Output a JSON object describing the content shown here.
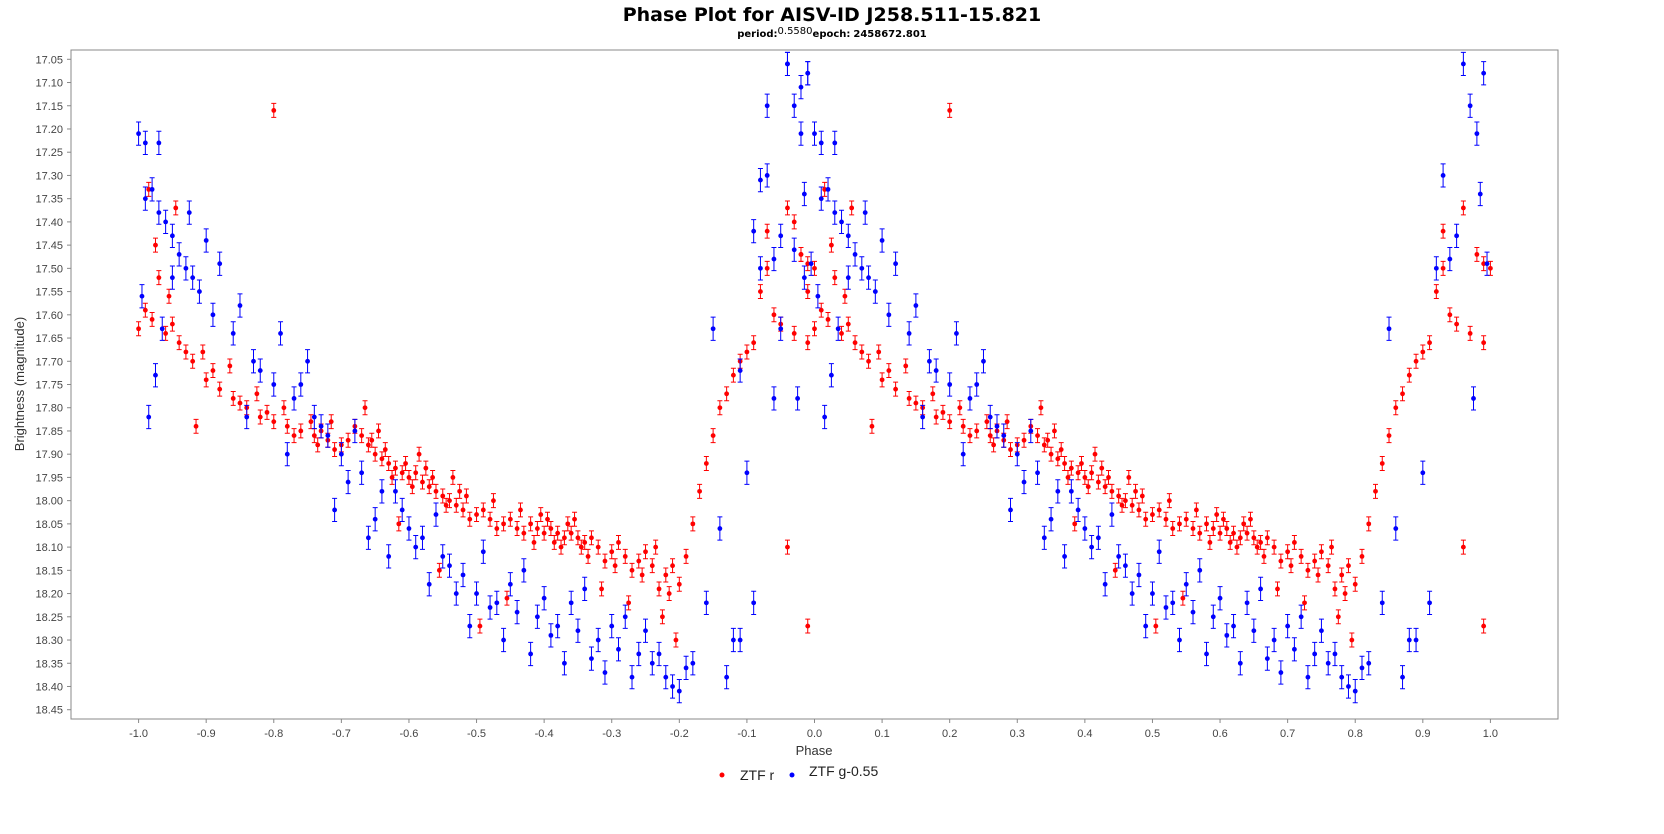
{
  "chart_data": {
    "type": "scatter",
    "title": "Phase Plot for AISV-ID J258.511-15.821",
    "subtitle": {
      "period_label": "period:",
      "period_value": "0.5580",
      "epoch_label": "epoch:",
      "epoch_value": "2458672.801"
    },
    "xlabel": "Phase",
    "ylabel": "Brightness (magnitude)",
    "xlim": [
      -1.1,
      1.1
    ],
    "ylim": [
      17.03,
      18.47
    ],
    "y_inverted": true,
    "grid": false,
    "x_ticks": [
      "-1.0",
      "-0.9",
      "-0.8",
      "-0.7",
      "-0.6",
      "-0.5",
      "-0.4",
      "-0.3",
      "-0.2",
      "-0.1",
      "0.0",
      "0.1",
      "0.2",
      "0.3",
      "0.4",
      "0.5",
      "0.6",
      "0.7",
      "0.8",
      "0.9",
      "1.0"
    ],
    "y_ticks": [
      "17.05",
      "17.10",
      "17.15",
      "17.20",
      "17.25",
      "17.30",
      "17.35",
      "17.40",
      "17.45",
      "17.50",
      "17.55",
      "17.60",
      "17.65",
      "17.70",
      "17.75",
      "17.80",
      "17.85",
      "17.90",
      "17.95",
      "18.00",
      "18.05",
      "18.10",
      "18.15",
      "18.20",
      "18.25",
      "18.30",
      "18.35",
      "18.40",
      "18.45"
    ],
    "legend_position": "bottom-center",
    "series": [
      {
        "name": "ZTF r",
        "color": "#ff0000",
        "error_bar": 0.015,
        "points": [
          [
            0.0,
            17.63
          ],
          [
            0.02,
            17.61
          ],
          [
            0.04,
            17.64
          ],
          [
            0.06,
            17.66
          ],
          [
            0.08,
            17.7
          ],
          [
            0.1,
            17.74
          ],
          [
            0.12,
            17.76
          ],
          [
            0.14,
            17.78
          ],
          [
            0.16,
            17.8
          ],
          [
            0.18,
            17.82
          ],
          [
            0.2,
            17.83
          ],
          [
            0.22,
            17.84
          ],
          [
            0.24,
            17.85
          ],
          [
            0.26,
            17.86
          ],
          [
            0.28,
            17.87
          ],
          [
            0.3,
            17.88
          ],
          [
            0.32,
            17.84
          ],
          [
            0.33,
            17.86
          ],
          [
            0.34,
            17.88
          ],
          [
            0.35,
            17.9
          ],
          [
            0.36,
            17.91
          ],
          [
            0.37,
            17.92
          ],
          [
            0.38,
            17.93
          ],
          [
            0.39,
            17.94
          ],
          [
            0.4,
            17.95
          ],
          [
            0.41,
            17.94
          ],
          [
            0.42,
            17.96
          ],
          [
            0.43,
            17.97
          ],
          [
            0.44,
            17.98
          ],
          [
            0.45,
            17.99
          ],
          [
            0.46,
            18.0
          ],
          [
            0.47,
            18.01
          ],
          [
            0.48,
            18.02
          ],
          [
            0.5,
            18.03
          ],
          [
            0.52,
            18.04
          ],
          [
            0.54,
            18.05
          ],
          [
            0.56,
            18.06
          ],
          [
            0.58,
            18.05
          ],
          [
            0.59,
            18.06
          ],
          [
            0.6,
            18.07
          ],
          [
            0.61,
            18.06
          ],
          [
            0.62,
            18.07
          ],
          [
            0.63,
            18.08
          ],
          [
            0.64,
            18.07
          ],
          [
            0.65,
            18.08
          ],
          [
            0.66,
            18.09
          ],
          [
            0.68,
            18.1
          ],
          [
            0.7,
            18.11
          ],
          [
            0.72,
            18.12
          ],
          [
            0.74,
            18.13
          ],
          [
            0.76,
            18.14
          ],
          [
            0.78,
            18.16
          ],
          [
            0.8,
            18.18
          ],
          [
            0.81,
            18.12
          ],
          [
            0.82,
            18.05
          ],
          [
            0.83,
            17.98
          ],
          [
            0.84,
            17.92
          ],
          [
            0.85,
            17.86
          ],
          [
            0.86,
            17.8
          ],
          [
            0.87,
            17.77
          ],
          [
            0.88,
            17.73
          ],
          [
            0.89,
            17.7
          ],
          [
            0.9,
            17.68
          ],
          [
            0.91,
            17.66
          ],
          [
            0.92,
            17.55
          ],
          [
            0.93,
            17.5
          ],
          [
            0.94,
            17.6
          ],
          [
            0.95,
            17.62
          ],
          [
            0.96,
            17.37
          ],
          [
            0.97,
            17.64
          ],
          [
            0.98,
            17.47
          ],
          [
            0.99,
            17.49
          ],
          [
            1.0,
            17.5
          ],
          [
            0.05,
            17.62
          ],
          [
            0.07,
            17.68
          ],
          [
            0.11,
            17.72
          ],
          [
            0.15,
            17.79
          ],
          [
            0.19,
            17.81
          ],
          [
            0.23,
            17.86
          ],
          [
            0.27,
            17.85
          ],
          [
            0.29,
            17.89
          ],
          [
            0.31,
            17.87
          ],
          [
            0.345,
            17.87
          ],
          [
            0.375,
            17.95
          ],
          [
            0.395,
            17.92
          ],
          [
            0.405,
            17.97
          ],
          [
            0.425,
            17.93
          ],
          [
            0.455,
            18.01
          ],
          [
            0.475,
            17.98
          ],
          [
            0.49,
            18.04
          ],
          [
            0.51,
            18.02
          ],
          [
            0.53,
            18.06
          ],
          [
            0.55,
            18.04
          ],
          [
            0.57,
            18.07
          ],
          [
            0.595,
            18.03
          ],
          [
            0.615,
            18.09
          ],
          [
            0.635,
            18.05
          ],
          [
            0.655,
            18.1
          ],
          [
            0.67,
            18.08
          ],
          [
            0.69,
            18.13
          ],
          [
            0.71,
            18.09
          ],
          [
            0.73,
            18.15
          ],
          [
            0.75,
            18.11
          ],
          [
            0.77,
            18.19
          ],
          [
            0.79,
            18.14
          ],
          [
            0.795,
            18.3
          ],
          [
            0.775,
            18.25
          ],
          [
            0.725,
            18.22
          ],
          [
            0.685,
            18.19
          ],
          [
            0.545,
            18.21
          ],
          [
            0.505,
            18.27
          ],
          [
            0.445,
            18.15
          ],
          [
            0.385,
            18.05
          ],
          [
            -0.03,
            17.4
          ],
          [
            -0.02,
            17.47
          ],
          [
            -0.01,
            17.55
          ],
          [
            0.01,
            17.59
          ],
          [
            0.03,
            17.52
          ],
          [
            0.015,
            17.33
          ],
          [
            0.025,
            17.45
          ],
          [
            0.045,
            17.56
          ],
          [
            0.085,
            17.84
          ],
          [
            0.055,
            17.37
          ],
          [
            0.2,
            17.16
          ],
          [
            0.96,
            18.1
          ],
          [
            0.99,
            18.27
          ],
          [
            0.99,
            17.66
          ],
          [
            0.93,
            17.42
          ],
          [
            0.095,
            17.68
          ],
          [
            0.135,
            17.71
          ],
          [
            0.175,
            17.77
          ],
          [
            0.215,
            17.8
          ],
          [
            0.255,
            17.83
          ],
          [
            0.265,
            17.88
          ],
          [
            0.285,
            17.83
          ],
          [
            0.335,
            17.8
          ],
          [
            0.355,
            17.85
          ],
          [
            0.365,
            17.89
          ],
          [
            0.415,
            17.9
          ],
          [
            0.435,
            17.95
          ],
          [
            0.465,
            17.95
          ],
          [
            0.485,
            17.99
          ],
          [
            0.525,
            18.0
          ],
          [
            0.565,
            18.02
          ],
          [
            0.585,
            18.09
          ],
          [
            0.605,
            18.04
          ],
          [
            0.625,
            18.1
          ],
          [
            0.645,
            18.04
          ],
          [
            0.665,
            18.12
          ],
          [
            0.705,
            18.14
          ],
          [
            0.745,
            18.16
          ],
          [
            0.765,
            18.1
          ],
          [
            0.785,
            18.2
          ]
        ]
      },
      {
        "name": "ZTF g-0.55",
        "color": "#0000ff",
        "error_bar": 0.025,
        "points": [
          [
            0.0,
            17.21
          ],
          [
            0.01,
            17.23
          ],
          [
            0.02,
            17.33
          ],
          [
            0.03,
            17.38
          ],
          [
            0.04,
            17.4
          ],
          [
            0.05,
            17.43
          ],
          [
            0.06,
            17.47
          ],
          [
            0.07,
            17.5
          ],
          [
            0.08,
            17.52
          ],
          [
            0.09,
            17.55
          ],
          [
            0.11,
            17.6
          ],
          [
            0.14,
            17.64
          ],
          [
            0.17,
            17.7
          ],
          [
            0.2,
            17.75
          ],
          [
            0.23,
            17.78
          ],
          [
            0.26,
            17.82
          ],
          [
            0.28,
            17.86
          ],
          [
            0.3,
            17.9
          ],
          [
            0.33,
            17.94
          ],
          [
            0.36,
            17.98
          ],
          [
            0.39,
            18.02
          ],
          [
            0.42,
            18.08
          ],
          [
            0.45,
            18.12
          ],
          [
            0.48,
            18.16
          ],
          [
            0.5,
            18.2
          ],
          [
            0.53,
            18.22
          ],
          [
            0.56,
            18.24
          ],
          [
            0.59,
            18.25
          ],
          [
            0.62,
            18.27
          ],
          [
            0.65,
            18.28
          ],
          [
            0.68,
            18.3
          ],
          [
            0.71,
            18.32
          ],
          [
            0.74,
            18.33
          ],
          [
            0.76,
            18.35
          ],
          [
            0.78,
            18.38
          ],
          [
            0.79,
            18.4
          ],
          [
            0.8,
            18.41
          ],
          [
            0.82,
            18.35
          ],
          [
            0.85,
            17.63
          ],
          [
            0.87,
            18.38
          ],
          [
            0.89,
            18.3
          ],
          [
            0.91,
            18.22
          ],
          [
            0.92,
            17.5
          ],
          [
            0.93,
            17.3
          ],
          [
            0.94,
            17.48
          ],
          [
            0.95,
            17.43
          ],
          [
            0.96,
            17.06
          ],
          [
            0.97,
            17.15
          ],
          [
            0.98,
            17.21
          ],
          [
            0.99,
            17.08
          ],
          [
            0.995,
            17.49
          ],
          [
            0.975,
            17.78
          ],
          [
            0.985,
            17.34
          ],
          [
            -0.04,
            17.06
          ],
          [
            -0.07,
            17.15
          ],
          [
            -0.08,
            17.31
          ],
          [
            -0.02,
            17.11
          ],
          [
            -0.01,
            17.08
          ],
          [
            0.01,
            17.35
          ],
          [
            0.03,
            17.23
          ],
          [
            0.05,
            17.52
          ],
          [
            0.075,
            17.38
          ],
          [
            0.1,
            17.44
          ],
          [
            0.12,
            17.49
          ],
          [
            0.15,
            17.58
          ],
          [
            0.18,
            17.72
          ],
          [
            0.21,
            17.64
          ],
          [
            0.24,
            17.75
          ],
          [
            0.27,
            17.84
          ],
          [
            0.29,
            18.02
          ],
          [
            0.31,
            17.96
          ],
          [
            0.34,
            18.08
          ],
          [
            0.37,
            18.12
          ],
          [
            0.4,
            18.06
          ],
          [
            0.43,
            18.18
          ],
          [
            0.46,
            18.14
          ],
          [
            0.49,
            18.27
          ],
          [
            0.52,
            18.23
          ],
          [
            0.55,
            18.18
          ],
          [
            0.58,
            18.33
          ],
          [
            0.61,
            18.29
          ],
          [
            0.64,
            18.22
          ],
          [
            0.67,
            18.34
          ],
          [
            0.7,
            18.27
          ],
          [
            0.73,
            18.38
          ],
          [
            0.75,
            18.28
          ],
          [
            0.77,
            18.33
          ],
          [
            0.81,
            18.36
          ],
          [
            0.84,
            18.22
          ],
          [
            0.86,
            18.06
          ],
          [
            0.88,
            18.3
          ],
          [
            0.9,
            17.94
          ],
          [
            0.16,
            17.82
          ],
          [
            0.22,
            17.9
          ],
          [
            0.25,
            17.7
          ],
          [
            0.32,
            17.85
          ],
          [
            0.35,
            18.04
          ],
          [
            0.38,
            17.98
          ],
          [
            0.41,
            18.1
          ],
          [
            0.44,
            18.03
          ],
          [
            0.47,
            18.2
          ],
          [
            0.51,
            18.11
          ],
          [
            0.54,
            18.3
          ],
          [
            0.57,
            18.15
          ],
          [
            0.6,
            18.21
          ],
          [
            0.63,
            18.35
          ],
          [
            0.66,
            18.19
          ],
          [
            0.69,
            18.37
          ],
          [
            0.72,
            18.25
          ],
          [
            -0.09,
            17.42
          ],
          [
            -0.06,
            17.78
          ],
          [
            -0.05,
            17.63
          ],
          [
            -0.03,
            17.46
          ],
          [
            -0.015,
            17.52
          ],
          [
            0.005,
            17.56
          ],
          [
            0.035,
            17.63
          ],
          [
            -0.11,
            17.72
          ],
          [
            0.015,
            17.82
          ],
          [
            0.025,
            17.73
          ]
        ]
      }
    ]
  }
}
